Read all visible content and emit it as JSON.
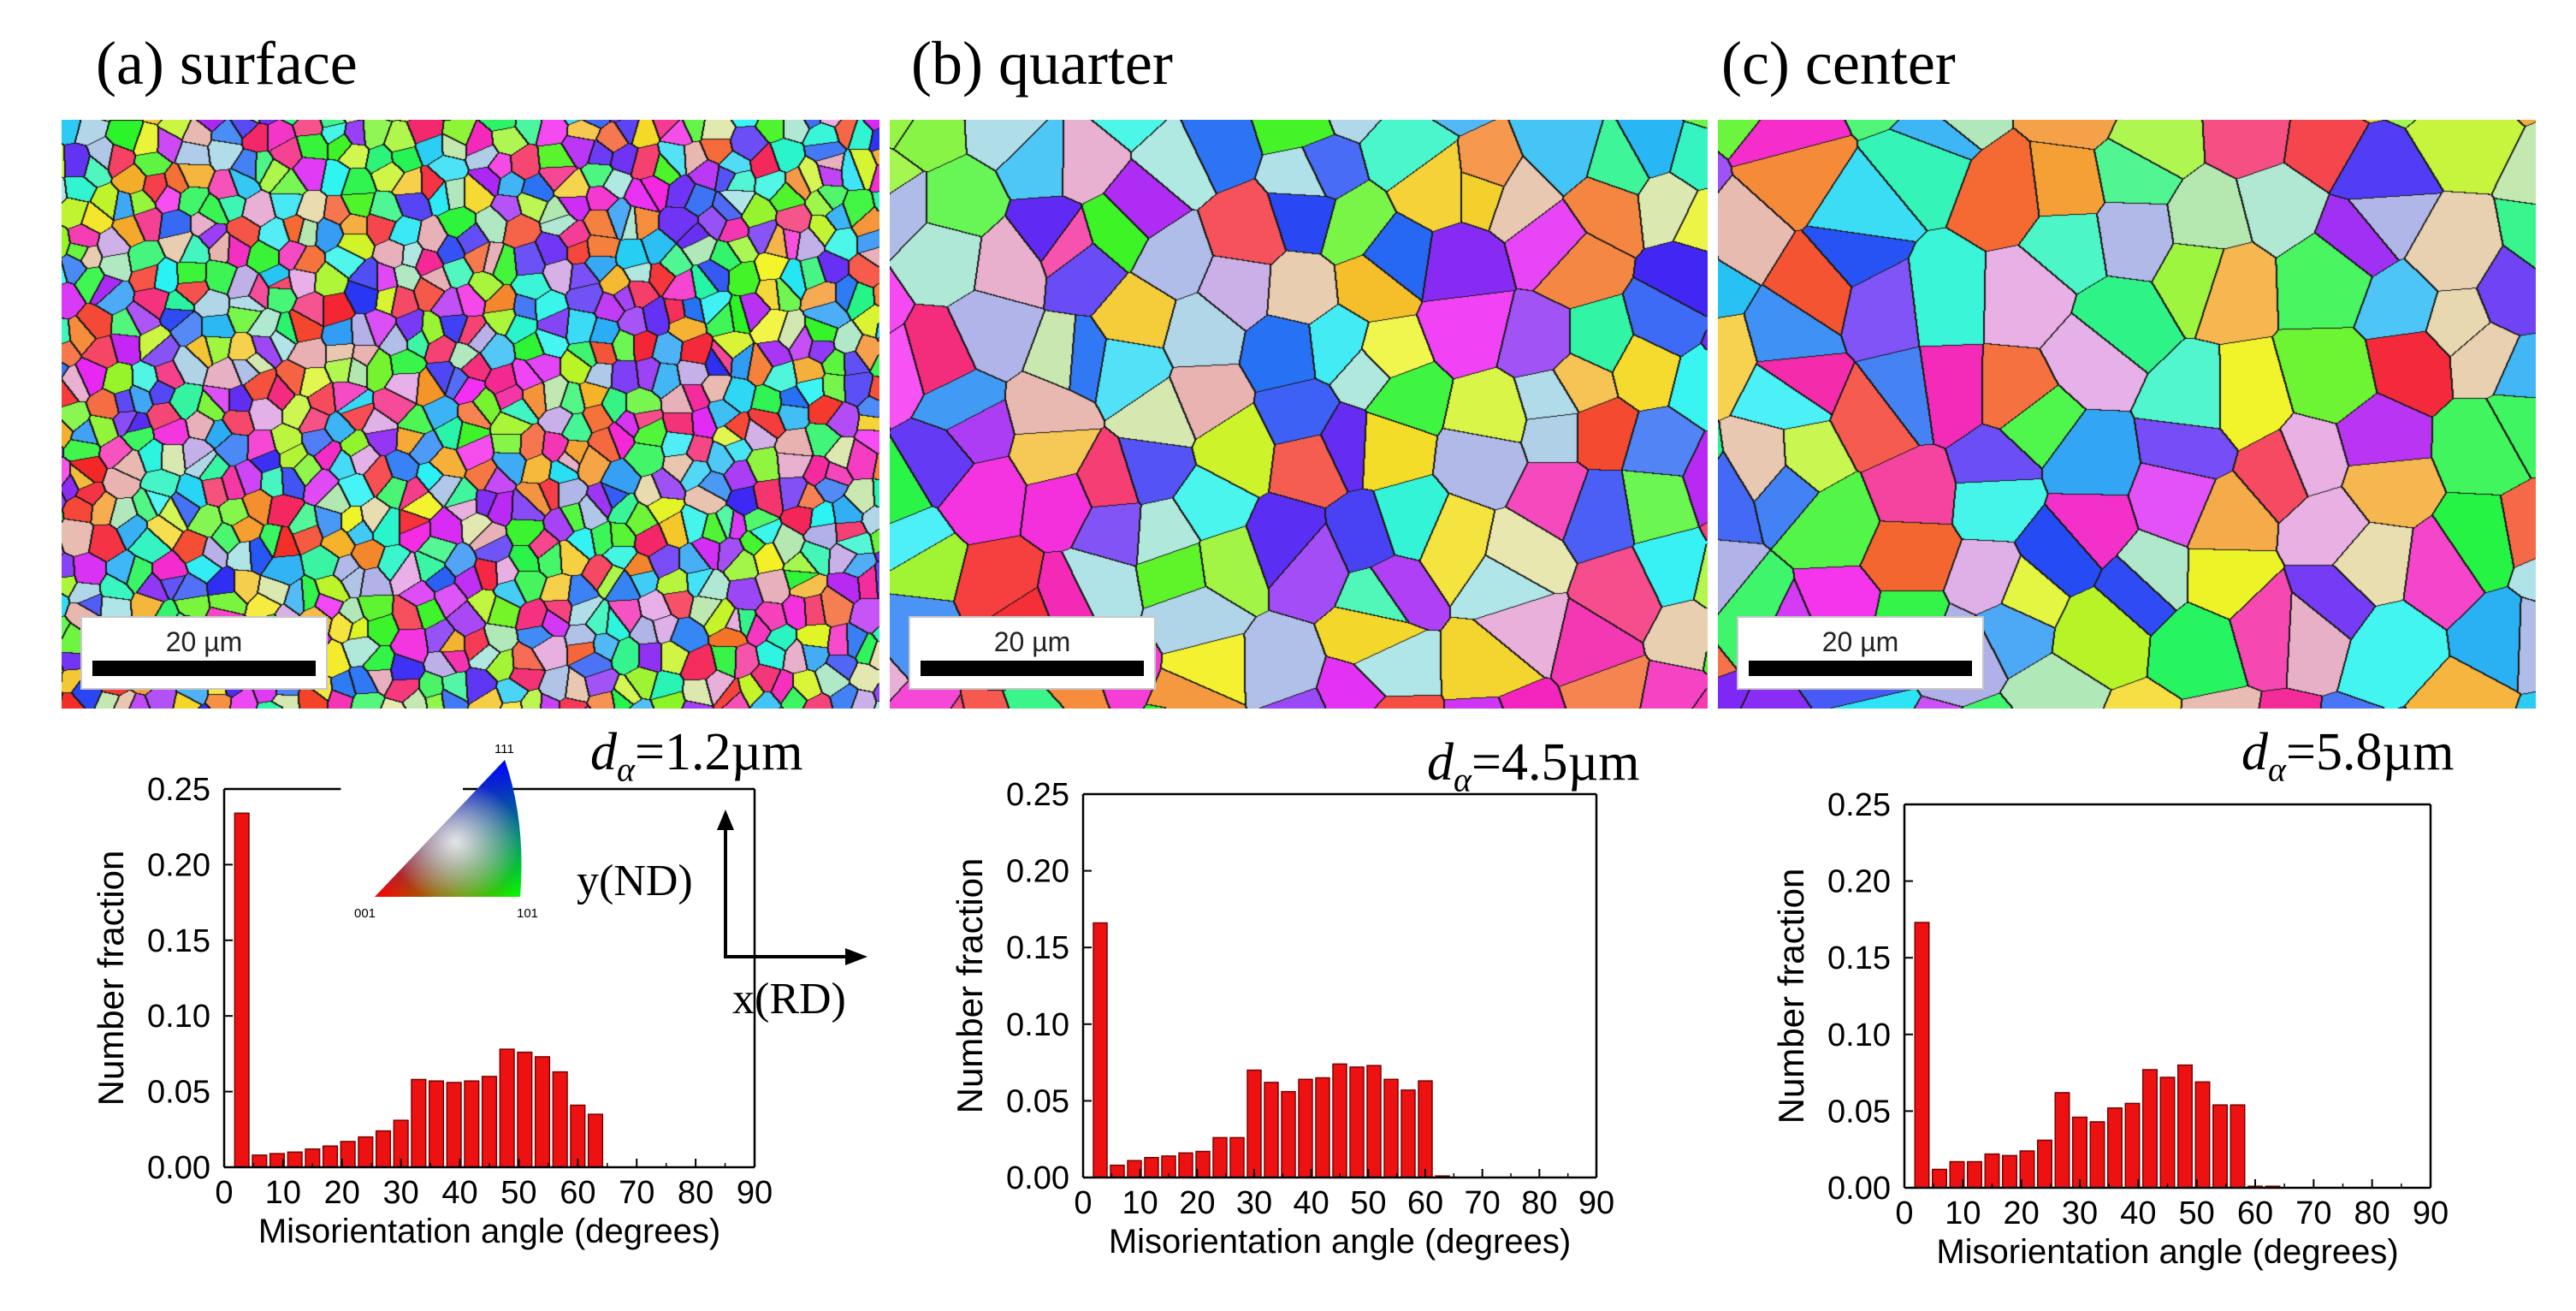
{
  "panels": [
    {
      "title": "(a) surface",
      "scale_label": "20 µm",
      "grain_symbol": "d",
      "grain_sub": "α",
      "grain_value": "=1.2µm"
    },
    {
      "title": "(b) quarter",
      "scale_label": "20 µm",
      "grain_symbol": "d",
      "grain_sub": "α",
      "grain_value": "=4.5µm"
    },
    {
      "title": "(c) center",
      "scale_label": "20 µm",
      "grain_symbol": "d",
      "grain_sub": "α",
      "grain_value": "=5.8µm"
    }
  ],
  "legend": {
    "corner_top": "111",
    "corner_left": "001",
    "corner_right": "101",
    "axis_y": "y(ND)",
    "axis_x": "x(RD)"
  },
  "chart_data": [
    {
      "type": "bar",
      "title": "(a) surface",
      "xlabel": "Misorientation angle (degrees)",
      "ylabel": "Number fraction",
      "xlim": [
        0,
        90
      ],
      "ylim": [
        0,
        0.25
      ],
      "xticks": [
        0,
        10,
        20,
        30,
        40,
        50,
        60,
        70,
        80,
        90
      ],
      "yticks": [
        "0.00",
        "0.05",
        "0.10",
        "0.15",
        "0.20",
        "0.25"
      ],
      "bin_width": 3,
      "x": [
        3,
        6,
        9,
        12,
        15,
        18,
        21,
        24,
        27,
        30,
        33,
        36,
        39,
        42,
        45,
        48,
        51,
        54,
        57,
        60,
        63
      ],
      "values": [
        0.234,
        0.008,
        0.009,
        0.01,
        0.012,
        0.014,
        0.017,
        0.02,
        0.024,
        0.031,
        0.058,
        0.057,
        0.056,
        0.057,
        0.06,
        0.078,
        0.076,
        0.073,
        0.063,
        0.041,
        0.035
      ]
    },
    {
      "type": "bar",
      "title": "(b) quarter",
      "xlabel": "Misorientation angle (degrees)",
      "ylabel": "Number fraction",
      "xlim": [
        0,
        90
      ],
      "ylim": [
        0,
        0.25
      ],
      "xticks": [
        0,
        10,
        20,
        30,
        40,
        50,
        60,
        70,
        80,
        90
      ],
      "yticks": [
        "0.00",
        "0.05",
        "0.10",
        "0.15",
        "0.20",
        "0.25"
      ],
      "bin_width": 3,
      "x": [
        3,
        6,
        9,
        12,
        15,
        18,
        21,
        24,
        27,
        30,
        33,
        36,
        39,
        42,
        45,
        48,
        51,
        54,
        57,
        60,
        63
      ],
      "values": [
        0.166,
        0.008,
        0.011,
        0.013,
        0.014,
        0.016,
        0.017,
        0.026,
        0.026,
        0.07,
        0.062,
        0.056,
        0.064,
        0.065,
        0.074,
        0.072,
        0.073,
        0.064,
        0.057,
        0.063,
        0.001
      ]
    },
    {
      "type": "bar",
      "title": "(c) center",
      "xlabel": "Misorientation angle (degrees)",
      "ylabel": "Number fraction",
      "xlim": [
        0,
        90
      ],
      "ylim": [
        0,
        0.25
      ],
      "xticks": [
        0,
        10,
        20,
        30,
        40,
        50,
        60,
        70,
        80,
        90
      ],
      "yticks": [
        "0.00",
        "0.05",
        "0.10",
        "0.15",
        "0.20",
        "0.25"
      ],
      "bin_width": 3,
      "x": [
        3,
        6,
        9,
        12,
        15,
        18,
        21,
        24,
        27,
        30,
        33,
        36,
        39,
        42,
        45,
        48,
        51,
        54,
        57,
        60,
        63
      ],
      "values": [
        0.173,
        0.012,
        0.017,
        0.017,
        0.022,
        0.021,
        0.024,
        0.031,
        0.062,
        0.046,
        0.043,
        0.052,
        0.055,
        0.077,
        0.072,
        0.08,
        0.069,
        0.054,
        0.054,
        0.001,
        0.001
      ]
    }
  ]
}
